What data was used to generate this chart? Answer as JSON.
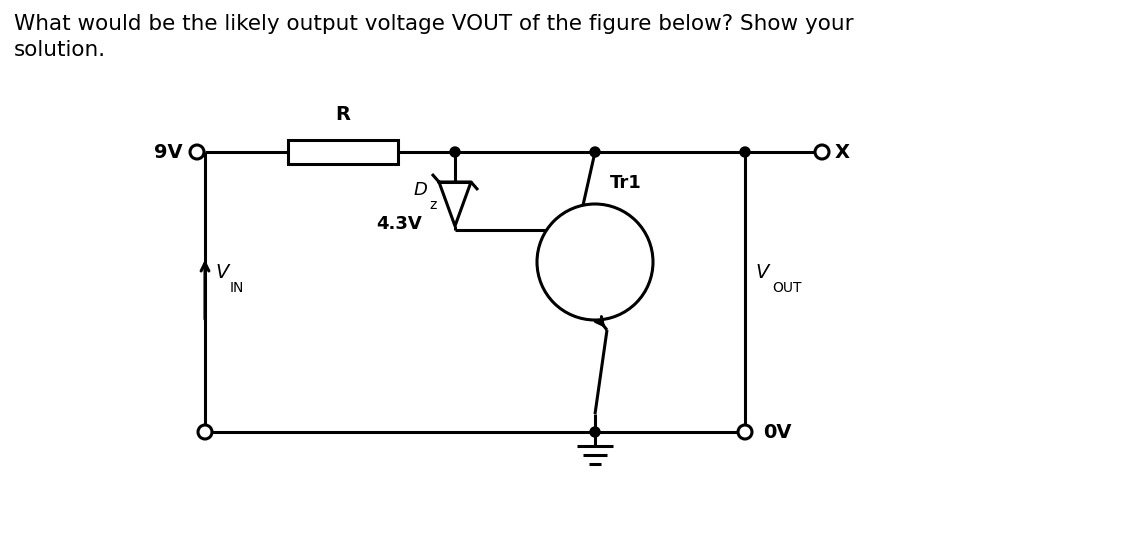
{
  "title_line1": "What would be the likely output voltage VOUT of the figure below? Show your",
  "title_line2": "solution.",
  "bg_color": "#ffffff",
  "line_color": "#000000",
  "line_width": 2.2,
  "circuit": {
    "9V_label": "9V",
    "R_label": "R",
    "Dz_label": "D",
    "Dz_sub": "z",
    "Dz_voltage": "4.3V",
    "Tr1_label": "Tr1",
    "VIN_label": "V",
    "VIN_sub": "IN",
    "VOUT_label": "V",
    "VOUT_sub": "OUT",
    "X_label": "X",
    "OV_label": "0V"
  }
}
